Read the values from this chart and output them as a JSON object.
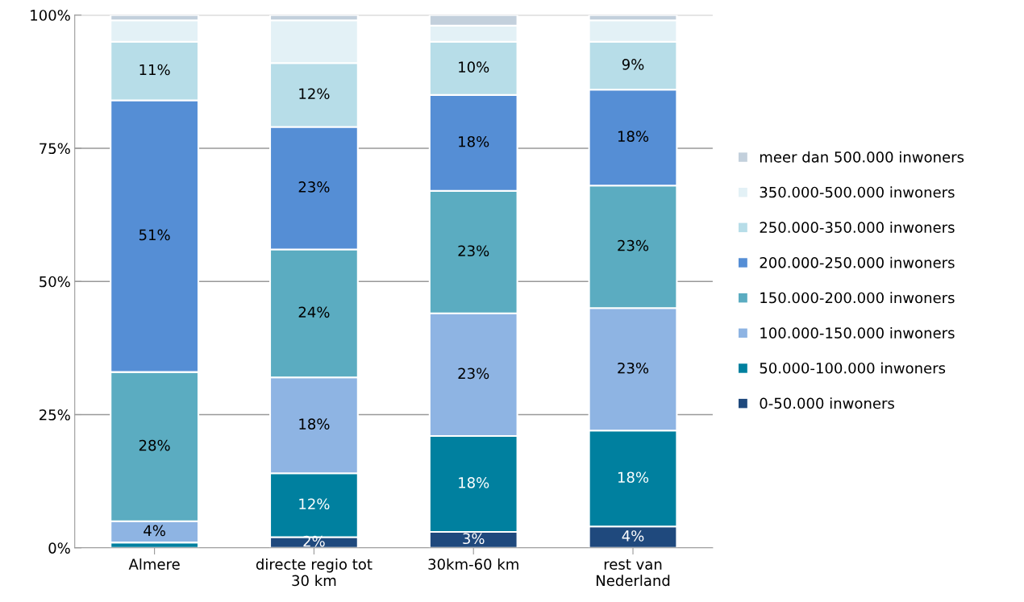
{
  "chart_data": {
    "type": "bar",
    "stacked": true,
    "categories": [
      "Almere",
      "directe regio tot\n30 km",
      "30km-60 km",
      "rest van\nNederland"
    ],
    "ylim": [
      0,
      100
    ],
    "yticks": [
      {
        "value": 0,
        "label": "0%"
      },
      {
        "value": 25,
        "label": "25%"
      },
      {
        "value": 50,
        "label": "50%"
      },
      {
        "value": 75,
        "label": "75%"
      },
      {
        "value": 100,
        "label": "100%"
      }
    ],
    "grid": "y",
    "legend": "right",
    "series": [
      {
        "name": "0-50.000 inwoners",
        "color": "#1f497d",
        "values": [
          0,
          2,
          3,
          4
        ],
        "value_labels": [
          null,
          "2%",
          "3%",
          "4%"
        ]
      },
      {
        "name": "50.000-100.000 inwoners",
        "color": "#00809f",
        "values": [
          1,
          12,
          18,
          18
        ],
        "value_labels": [
          null,
          "12%",
          "18%",
          "18%"
        ]
      },
      {
        "name": "100.000-150.000 inwoners",
        "color": "#8eb4e3",
        "values": [
          4,
          18,
          23,
          23
        ],
        "value_labels": [
          "4%",
          "18%",
          "23%",
          "23%"
        ]
      },
      {
        "name": "150.000-200.000 inwoners",
        "color": "#5bacc1",
        "values": [
          28,
          24,
          23,
          23
        ],
        "value_labels": [
          "28%",
          "24%",
          "23%",
          "23%"
        ]
      },
      {
        "name": "200.000-250.000 inwoners",
        "color": "#558ed5",
        "values": [
          51,
          23,
          18,
          18
        ],
        "value_labels": [
          "51%",
          "23%",
          "18%",
          "18%"
        ]
      },
      {
        "name": "250.000-350.000 inwoners",
        "color": "#b7dde8",
        "values": [
          11,
          12,
          10,
          9
        ],
        "value_labels": [
          "11%",
          "12%",
          "10%",
          "9%"
        ]
      },
      {
        "name": "350.000-500.000 inwoners",
        "color": "#e3f1f6",
        "values": [
          4,
          8,
          3,
          4
        ],
        "value_labels": [
          null,
          null,
          null,
          null
        ]
      },
      {
        "name": "meer dan 500.000 inwoners",
        "color": "#c3d0dc",
        "values": [
          1,
          1,
          2,
          1
        ],
        "value_labels": [
          null,
          null,
          null,
          null
        ]
      }
    ]
  }
}
